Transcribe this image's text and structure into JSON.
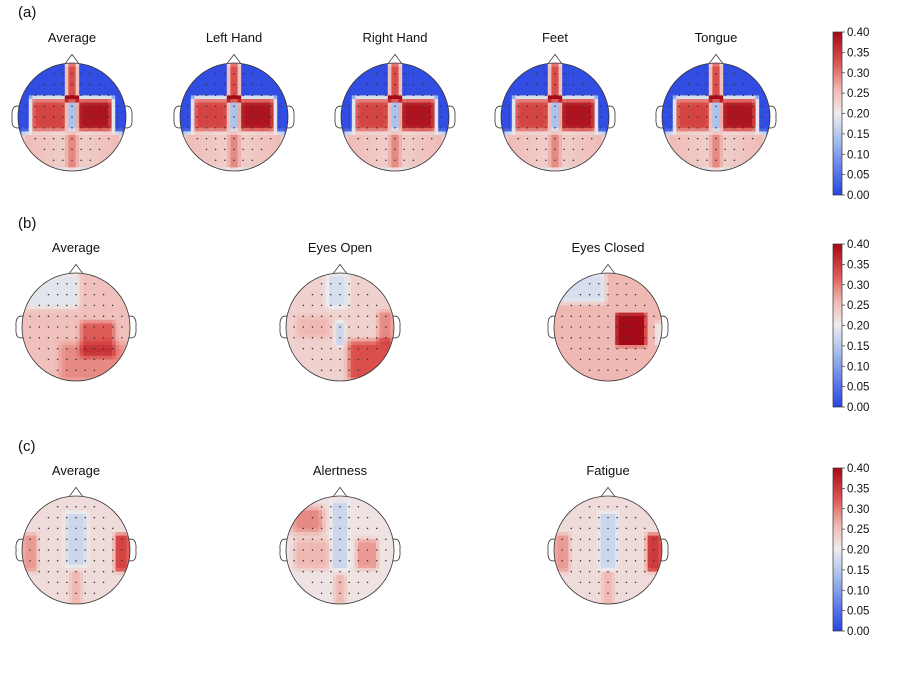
{
  "colorbar": {
    "ticks": [
      "0.00",
      "0.05",
      "0.10",
      "0.15",
      "0.20",
      "0.25",
      "0.30",
      "0.35",
      "0.40"
    ],
    "colors": {
      "low": "#3b4cc0",
      "mid": "#f2f2f2",
      "high": "#b40426"
    }
  },
  "chart_data": [
    {
      "type": "heatmap",
      "panel_label": "(a)",
      "value_range": [
        0.0,
        0.4
      ],
      "topomaps": [
        {
          "title": "Average",
          "pattern": "motor"
        },
        {
          "title": "Left Hand",
          "pattern": "motor"
        },
        {
          "title": "Right Hand",
          "pattern": "motor"
        },
        {
          "title": "Feet",
          "pattern": "motor"
        },
        {
          "title": "Tongue",
          "pattern": "motor"
        }
      ]
    },
    {
      "type": "heatmap",
      "panel_label": "(b)",
      "value_range": [
        0.0,
        0.4
      ],
      "topomaps": [
        {
          "title": "Average",
          "pattern": "eyes_average"
        },
        {
          "title": "Eyes Open",
          "pattern": "eyes_open"
        },
        {
          "title": "Eyes Closed",
          "pattern": "eyes_closed"
        }
      ]
    },
    {
      "type": "heatmap",
      "panel_label": "(c)",
      "value_range": [
        0.0,
        0.4
      ],
      "topomaps": [
        {
          "title": "Average",
          "pattern": "vigilance_average"
        },
        {
          "title": "Alertness",
          "pattern": "alertness"
        },
        {
          "title": "Fatigue",
          "pattern": "fatigue"
        }
      ]
    }
  ]
}
